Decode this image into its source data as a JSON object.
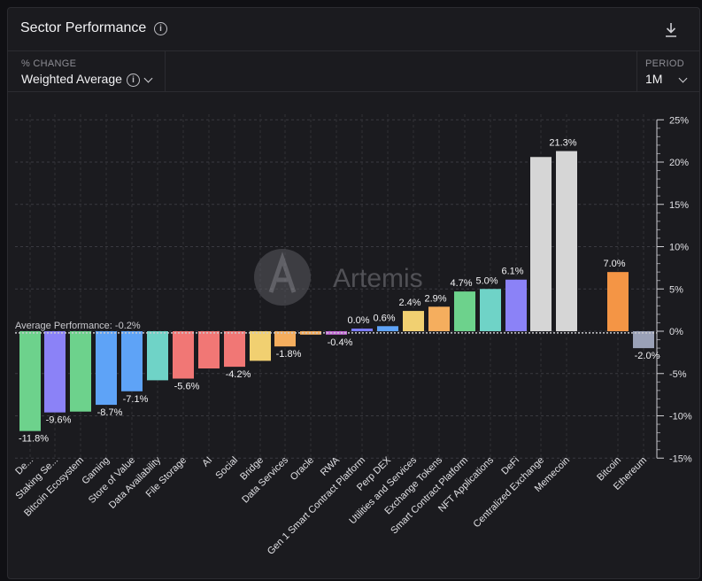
{
  "header": {
    "title": "Sector Performance",
    "info_icon": "info-icon",
    "download_icon": "download-icon"
  },
  "controls": {
    "metric_label": "% CHANGE",
    "metric_value": "Weighted Average",
    "period_label": "PERIOD",
    "period_value": "1M"
  },
  "watermark": {
    "text": "Artemis"
  },
  "chart_data": {
    "type": "bar",
    "categories": [
      "De...",
      "Staking Se...",
      "Bitcoin Ecosystem",
      "Gaming",
      "Store of Value",
      "Data Availability",
      "File Storage",
      "AI",
      "Social",
      "Bridge",
      "Data Services",
      "Oracle",
      "RWA",
      "Gen 1 Smart Contract Platform",
      "Perp DEX",
      "Utilities and Services",
      "Exchange Tokens",
      "Smart Contract Platform",
      "NFT Applications",
      "DeFi",
      "Centralized Exchange",
      "Memecoin",
      "Bitcoin",
      "Ethereum"
    ],
    "values": [
      -11.8,
      -9.6,
      -9.5,
      -8.7,
      -7.1,
      -5.8,
      -5.6,
      -4.4,
      -4.2,
      -3.5,
      -1.8,
      -0.4,
      -0.4,
      0.0,
      0.6,
      2.4,
      2.9,
      4.7,
      5.0,
      6.1,
      20.6,
      21.3,
      7.0,
      -2.0
    ],
    "data_labels": [
      "-11.8%",
      "-9.6%",
      "",
      "-8.7%",
      "-7.1%",
      "",
      "-5.6%",
      "",
      "-4.2%",
      "",
      "-1.8%",
      "",
      "-0.4%",
      "0.0%",
      "0.6%",
      "2.4%",
      "2.9%",
      "4.7%",
      "5.0%",
      "6.1%",
      "",
      "21.3%",
      "7.0%",
      "-2.0%"
    ],
    "colors": [
      "#6dd28c",
      "#8b82f7",
      "#6dd28c",
      "#5ea3f7",
      "#5ea3f7",
      "#6fd3c7",
      "#f17775",
      "#f17775",
      "#f17775",
      "#f1d071",
      "#f5ae5e",
      "#f5ae5e",
      "#c56bd7",
      "#7b7bff",
      "#5ea3f7",
      "#f1d071",
      "#f5ae5e",
      "#6dd28c",
      "#6fd3c7",
      "#8b82f7",
      "#d6d6d6",
      "#d6d6d6",
      "#f49545",
      "#9aa1b7"
    ],
    "yticks": [
      25,
      20,
      15,
      10,
      5,
      0,
      -5,
      -10,
      -15
    ],
    "ytick_labels": [
      "25%",
      "20%",
      "15%",
      "10%",
      "5%",
      "0%",
      "-5%",
      "-10%",
      "-15%"
    ],
    "ylim": [
      -15,
      25
    ],
    "average": {
      "label": "Average Performance: -0.2%",
      "value": -0.2
    },
    "grid": true
  }
}
